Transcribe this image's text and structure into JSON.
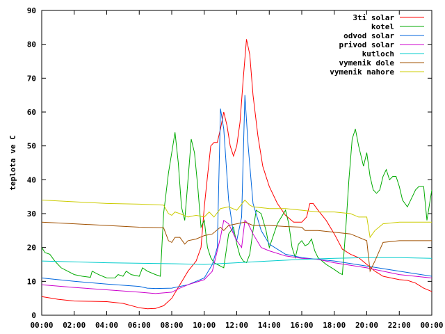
{
  "chart_data": {
    "type": "line",
    "title": "",
    "xlabel": "",
    "ylabel": "teplota ve C",
    "xlim": [
      0,
      24
    ],
    "ylim": [
      0,
      90
    ],
    "grid": false,
    "legend_position": "top-right",
    "x_ticks": [
      0,
      2,
      4,
      6,
      8,
      10,
      12,
      14,
      16,
      18,
      20,
      22,
      24
    ],
    "x_tick_labels": [
      "00:00",
      "02:00",
      "04:00",
      "06:00",
      "08:00",
      "10:00",
      "12:00",
      "14:00",
      "16:00",
      "18:00",
      "20:00",
      "22:00",
      "00:00"
    ],
    "y_ticks": [
      0,
      10,
      20,
      30,
      40,
      50,
      60,
      70,
      80,
      90
    ],
    "y_tick_labels": [
      "0",
      "10",
      "20",
      "30",
      "40",
      "50",
      "60",
      "70",
      "80",
      "90"
    ],
    "series": [
      {
        "name": "3ti solar",
        "color": "#ff0000",
        "points": [
          [
            0,
            5.5
          ],
          [
            1,
            4.7
          ],
          [
            2,
            4.2
          ],
          [
            3,
            4.1
          ],
          [
            4,
            4.0
          ],
          [
            5,
            3.5
          ],
          [
            6,
            2.2
          ],
          [
            6.5,
            1.9
          ],
          [
            7,
            2.0
          ],
          [
            7.5,
            2.8
          ],
          [
            8,
            5
          ],
          [
            8.5,
            9
          ],
          [
            9,
            13
          ],
          [
            9.5,
            16
          ],
          [
            9.8,
            20
          ],
          [
            10,
            32
          ],
          [
            10.2,
            41
          ],
          [
            10.4,
            50
          ],
          [
            10.6,
            51
          ],
          [
            10.8,
            51
          ],
          [
            11,
            55
          ],
          [
            11.2,
            60
          ],
          [
            11.4,
            56
          ],
          [
            11.6,
            50
          ],
          [
            11.8,
            47
          ],
          [
            12,
            50
          ],
          [
            12.2,
            57
          ],
          [
            12.4,
            70
          ],
          [
            12.6,
            81.5
          ],
          [
            12.8,
            77
          ],
          [
            13,
            65
          ],
          [
            13.3,
            53
          ],
          [
            13.6,
            44
          ],
          [
            14,
            38
          ],
          [
            14.5,
            33
          ],
          [
            15,
            29.5
          ],
          [
            15.5,
            27.5
          ],
          [
            16,
            27.5
          ],
          [
            16.3,
            29
          ],
          [
            16.5,
            33
          ],
          [
            16.7,
            33
          ],
          [
            17,
            31
          ],
          [
            17.5,
            28
          ],
          [
            18,
            24
          ],
          [
            18.5,
            19.5
          ],
          [
            19,
            18
          ],
          [
            19.5,
            17
          ],
          [
            20,
            15
          ],
          [
            20.5,
            13
          ],
          [
            21,
            11.5
          ],
          [
            21.5,
            11
          ],
          [
            22,
            10.5
          ],
          [
            22.5,
            10.3
          ],
          [
            23,
            9.5
          ],
          [
            23.5,
            8
          ],
          [
            24,
            7
          ]
        ]
      },
      {
        "name": "kotel",
        "color": "#00aa00",
        "points": [
          [
            0,
            20
          ],
          [
            0.2,
            18.5
          ],
          [
            0.5,
            18
          ],
          [
            0.8,
            16
          ],
          [
            1.2,
            14
          ],
          [
            2,
            12
          ],
          [
            2.5,
            11.5
          ],
          [
            3,
            11.2
          ],
          [
            3.1,
            13
          ],
          [
            3.5,
            12
          ],
          [
            4,
            11
          ],
          [
            4.5,
            11
          ],
          [
            4.7,
            12
          ],
          [
            5,
            11.5
          ],
          [
            5.2,
            13
          ],
          [
            5.5,
            12
          ],
          [
            6,
            11.5
          ],
          [
            6.2,
            14
          ],
          [
            6.5,
            13
          ],
          [
            7,
            12
          ],
          [
            7.3,
            11.5
          ],
          [
            7.5,
            30
          ],
          [
            7.8,
            42
          ],
          [
            8,
            48
          ],
          [
            8.2,
            54
          ],
          [
            8.4,
            45
          ],
          [
            8.6,
            32
          ],
          [
            8.8,
            28
          ],
          [
            9,
            40
          ],
          [
            9.2,
            52
          ],
          [
            9.4,
            48
          ],
          [
            9.6,
            38
          ],
          [
            9.8,
            26
          ],
          [
            10,
            28
          ],
          [
            10.2,
            20
          ],
          [
            10.4,
            17
          ],
          [
            10.6,
            15.5
          ],
          [
            10.8,
            15
          ],
          [
            11,
            14.5
          ],
          [
            11.2,
            14
          ],
          [
            11.5,
            24
          ],
          [
            11.8,
            26
          ],
          [
            12,
            21
          ],
          [
            12.2,
            17.5
          ],
          [
            12.4,
            16
          ],
          [
            12.6,
            15.5
          ],
          [
            12.8,
            18
          ],
          [
            13,
            25
          ],
          [
            13.2,
            31
          ],
          [
            13.5,
            30
          ],
          [
            13.8,
            25
          ],
          [
            14,
            20
          ],
          [
            14.5,
            27
          ],
          [
            15,
            31
          ],
          [
            15.2,
            27
          ],
          [
            15.4,
            20
          ],
          [
            15.6,
            17
          ],
          [
            15.8,
            21
          ],
          [
            16,
            22
          ],
          [
            16.2,
            20.5
          ],
          [
            16.4,
            21
          ],
          [
            16.6,
            22.5
          ],
          [
            16.8,
            19
          ],
          [
            17,
            17
          ],
          [
            17.5,
            15
          ],
          [
            18,
            13.5
          ],
          [
            18.3,
            12.5
          ],
          [
            18.5,
            12
          ],
          [
            18.7,
            25
          ],
          [
            18.9,
            40
          ],
          [
            19.1,
            52
          ],
          [
            19.3,
            55
          ],
          [
            19.5,
            50
          ],
          [
            19.8,
            44
          ],
          [
            20,
            48
          ],
          [
            20.2,
            41
          ],
          [
            20.4,
            37
          ],
          [
            20.6,
            36
          ],
          [
            20.8,
            37
          ],
          [
            21,
            41
          ],
          [
            21.2,
            43
          ],
          [
            21.4,
            40
          ],
          [
            21.6,
            41
          ],
          [
            21.8,
            41
          ],
          [
            22,
            38
          ],
          [
            22.2,
            34
          ],
          [
            22.5,
            32
          ],
          [
            22.8,
            35
          ],
          [
            23,
            37
          ],
          [
            23.2,
            38
          ],
          [
            23.5,
            38
          ],
          [
            23.7,
            28
          ],
          [
            24,
            37
          ],
          [
            24.2,
            32
          ],
          [
            24.5,
            22
          ]
        ]
      },
      {
        "name": "odvod solar",
        "color": "#0066dd",
        "points": [
          [
            0,
            11
          ],
          [
            2,
            10
          ],
          [
            4,
            9.2
          ],
          [
            6,
            8.5
          ],
          [
            6.5,
            8
          ],
          [
            7,
            7.9
          ],
          [
            8,
            8
          ],
          [
            9,
            9
          ],
          [
            10,
            11
          ],
          [
            10.5,
            15
          ],
          [
            10.8,
            20
          ],
          [
            11,
            61
          ],
          [
            11.2,
            55
          ],
          [
            11.5,
            34
          ],
          [
            11.8,
            24
          ],
          [
            12,
            22
          ],
          [
            12.3,
            29
          ],
          [
            12.5,
            65
          ],
          [
            12.7,
            50
          ],
          [
            13,
            33
          ],
          [
            13.5,
            25
          ],
          [
            14,
            21
          ],
          [
            15,
            18
          ],
          [
            16,
            17
          ],
          [
            17,
            16.5
          ],
          [
            18,
            16
          ],
          [
            20,
            14.5
          ],
          [
            22,
            13
          ],
          [
            24,
            11.5
          ]
        ]
      },
      {
        "name": "privod solar",
        "color": "#cc00cc",
        "points": [
          [
            0,
            9
          ],
          [
            2,
            8.2
          ],
          [
            4,
            7.5
          ],
          [
            6,
            6.8
          ],
          [
            7,
            6.4
          ],
          [
            8,
            6.8
          ],
          [
            8.5,
            8
          ],
          [
            9,
            9
          ],
          [
            10,
            10.5
          ],
          [
            10.5,
            13
          ],
          [
            11,
            23
          ],
          [
            11.2,
            28
          ],
          [
            11.5,
            27
          ],
          [
            11.8,
            24
          ],
          [
            12,
            22
          ],
          [
            12.3,
            20
          ],
          [
            12.5,
            28
          ],
          [
            12.7,
            27
          ],
          [
            13,
            24
          ],
          [
            13.5,
            20
          ],
          [
            14,
            19
          ],
          [
            15,
            17.5
          ],
          [
            16,
            16.8
          ],
          [
            17,
            16.5
          ],
          [
            18,
            15.5
          ],
          [
            20,
            14
          ],
          [
            22,
            12
          ],
          [
            24,
            11
          ]
        ]
      },
      {
        "name": "kutloch",
        "color": "#00cccc",
        "points": [
          [
            0,
            16
          ],
          [
            4,
            15.5
          ],
          [
            8,
            15.2
          ],
          [
            10,
            15
          ],
          [
            12,
            15.5
          ],
          [
            14,
            16
          ],
          [
            16,
            16.5
          ],
          [
            18,
            16.8
          ],
          [
            20,
            17
          ],
          [
            22,
            17
          ],
          [
            24,
            16.8
          ]
        ]
      },
      {
        "name": "vymenik dole",
        "color": "#a05000",
        "points": [
          [
            0,
            27.5
          ],
          [
            2,
            27
          ],
          [
            4,
            26.5
          ],
          [
            6,
            26
          ],
          [
            7.5,
            25.8
          ],
          [
            7.8,
            22
          ],
          [
            8,
            21.5
          ],
          [
            8.2,
            23
          ],
          [
            8.5,
            23
          ],
          [
            8.8,
            21
          ],
          [
            9,
            22
          ],
          [
            9.5,
            22.5
          ],
          [
            10,
            23.5
          ],
          [
            10.5,
            24
          ],
          [
            11,
            26
          ],
          [
            11.2,
            25
          ],
          [
            11.5,
            26.5
          ],
          [
            12,
            27
          ],
          [
            12.5,
            27.5
          ],
          [
            13,
            26.5
          ],
          [
            14,
            26.5
          ],
          [
            15,
            26.2
          ],
          [
            16,
            26
          ],
          [
            16.2,
            25
          ],
          [
            17,
            25
          ],
          [
            18,
            24.5
          ],
          [
            19,
            24
          ],
          [
            19.5,
            23
          ],
          [
            20,
            22
          ],
          [
            20.2,
            13
          ],
          [
            20.5,
            16
          ],
          [
            21,
            21.5
          ],
          [
            22,
            22
          ],
          [
            24,
            22
          ]
        ]
      },
      {
        "name": "vymenik nahore",
        "color": "#cccc00",
        "points": [
          [
            0,
            34
          ],
          [
            2,
            33.5
          ],
          [
            4,
            33
          ],
          [
            6,
            32.8
          ],
          [
            7.5,
            32.5
          ],
          [
            7.8,
            30
          ],
          [
            8,
            29.5
          ],
          [
            8.2,
            30.5
          ],
          [
            8.5,
            30
          ],
          [
            9,
            29
          ],
          [
            9.5,
            29.5
          ],
          [
            10,
            29
          ],
          [
            10.3,
            30.5
          ],
          [
            10.6,
            29
          ],
          [
            11,
            31.5
          ],
          [
            11.5,
            32
          ],
          [
            12,
            31
          ],
          [
            12.5,
            34
          ],
          [
            12.8,
            32.5
          ],
          [
            13,
            32
          ],
          [
            14,
            31.5
          ],
          [
            15,
            31.5
          ],
          [
            16,
            31
          ],
          [
            17,
            30.5
          ],
          [
            18,
            30.5
          ],
          [
            19,
            30
          ],
          [
            19.5,
            29
          ],
          [
            20,
            29
          ],
          [
            20.2,
            23
          ],
          [
            20.5,
            25
          ],
          [
            21,
            27
          ],
          [
            22,
            27.5
          ],
          [
            24,
            27.5
          ]
        ]
      }
    ]
  }
}
